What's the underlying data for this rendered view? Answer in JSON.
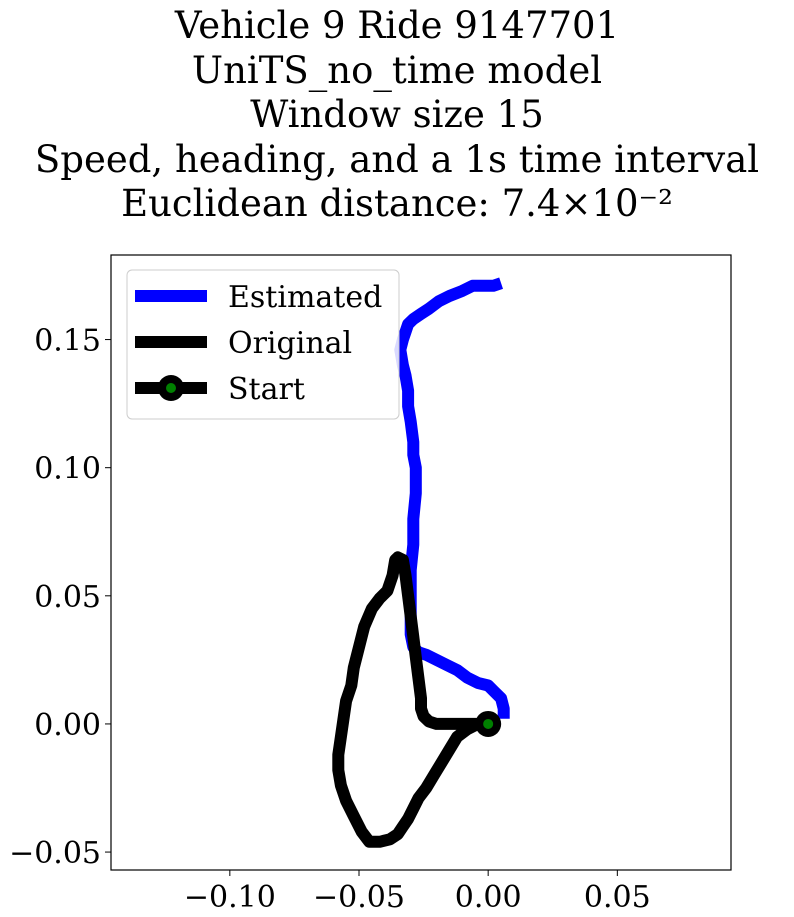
{
  "title_lines": [
    "Vehicle 9 Ride 9147701",
    "UniTS_no_time model",
    "Window size 15",
    "Speed, heading, and a 1s time interval",
    "Euclidean distance: 7.4×10⁻²"
  ],
  "chart_data": {
    "type": "line",
    "title": "Vehicle 9 Ride 9147701 / UniTS_no_time model / Window size 15 / Speed, heading, and a 1s time interval / Euclidean distance: 7.4×10⁻²",
    "xlabel": "",
    "ylabel": "",
    "xlim": [
      -0.146,
      0.094
    ],
    "ylim": [
      -0.057,
      0.183
    ],
    "xticks": [
      -0.1,
      -0.05,
      0.0,
      0.05
    ],
    "xtick_labels": [
      "−0.10",
      "−0.05",
      "0.00",
      "0.05"
    ],
    "yticks": [
      -0.05,
      0.0,
      0.05,
      0.1,
      0.15
    ],
    "ytick_labels": [
      "−0.05",
      "0.00",
      "0.05",
      "0.10",
      "0.15"
    ],
    "grid": false,
    "legend_position": "upper-left",
    "series": [
      {
        "name": "Estimated",
        "color": "#0000ff",
        "x": [
          0.006,
          0.006,
          0.005,
          0.002,
          0.0,
          -0.004,
          -0.008,
          -0.012,
          -0.016,
          -0.02,
          -0.024,
          -0.027,
          -0.029,
          -0.03,
          -0.03,
          -0.03,
          -0.03,
          -0.029,
          -0.029,
          -0.028,
          -0.028,
          -0.029,
          -0.029,
          -0.03,
          -0.031,
          -0.031,
          -0.032,
          -0.033,
          -0.034,
          -0.033,
          -0.032,
          -0.031,
          -0.029,
          -0.026,
          -0.023,
          -0.019,
          -0.015,
          -0.01,
          -0.006,
          -0.002,
          0.002,
          0.005
        ],
        "y": [
          0.002,
          0.006,
          0.01,
          0.013,
          0.015,
          0.016,
          0.018,
          0.021,
          0.023,
          0.025,
          0.027,
          0.028,
          0.03,
          0.035,
          0.04,
          0.05,
          0.06,
          0.07,
          0.08,
          0.09,
          0.1,
          0.105,
          0.11,
          0.118,
          0.124,
          0.13,
          0.136,
          0.14,
          0.146,
          0.15,
          0.153,
          0.156,
          0.158,
          0.16,
          0.162,
          0.165,
          0.167,
          0.169,
          0.171,
          0.171,
          0.171,
          0.172
        ]
      },
      {
        "name": "Original",
        "color": "#000000",
        "x": [
          0.0,
          -0.005,
          -0.01,
          -0.015,
          -0.02,
          -0.023,
          -0.025,
          -0.026,
          -0.026,
          -0.027,
          -0.028,
          -0.029,
          -0.03,
          -0.031,
          -0.032,
          -0.033,
          -0.035,
          -0.036,
          -0.037,
          -0.039,
          -0.042,
          -0.045,
          -0.048,
          -0.05,
          -0.052,
          -0.053,
          -0.055,
          -0.056,
          -0.057,
          -0.058,
          -0.058,
          -0.057,
          -0.055,
          -0.052,
          -0.049,
          -0.046,
          -0.042,
          -0.038,
          -0.035,
          -0.033,
          -0.031,
          -0.029,
          -0.027,
          -0.024,
          -0.021,
          -0.018,
          -0.015,
          -0.012,
          -0.008,
          -0.004,
          0.0
        ],
        "y": [
          0.0,
          0.0,
          0.0,
          0.0,
          0.0,
          0.001,
          0.003,
          0.006,
          0.01,
          0.018,
          0.026,
          0.034,
          0.042,
          0.05,
          0.058,
          0.064,
          0.065,
          0.064,
          0.058,
          0.052,
          0.049,
          0.045,
          0.038,
          0.03,
          0.022,
          0.015,
          0.009,
          0.002,
          -0.005,
          -0.012,
          -0.018,
          -0.024,
          -0.03,
          -0.036,
          -0.042,
          -0.046,
          -0.046,
          -0.045,
          -0.043,
          -0.04,
          -0.037,
          -0.033,
          -0.029,
          -0.025,
          -0.02,
          -0.015,
          -0.01,
          -0.005,
          -0.002,
          0.0,
          0.0
        ]
      },
      {
        "name": "Start",
        "color": "#000000",
        "marker_face": "#008000",
        "x": [
          0.0
        ],
        "y": [
          0.0
        ]
      }
    ]
  }
}
